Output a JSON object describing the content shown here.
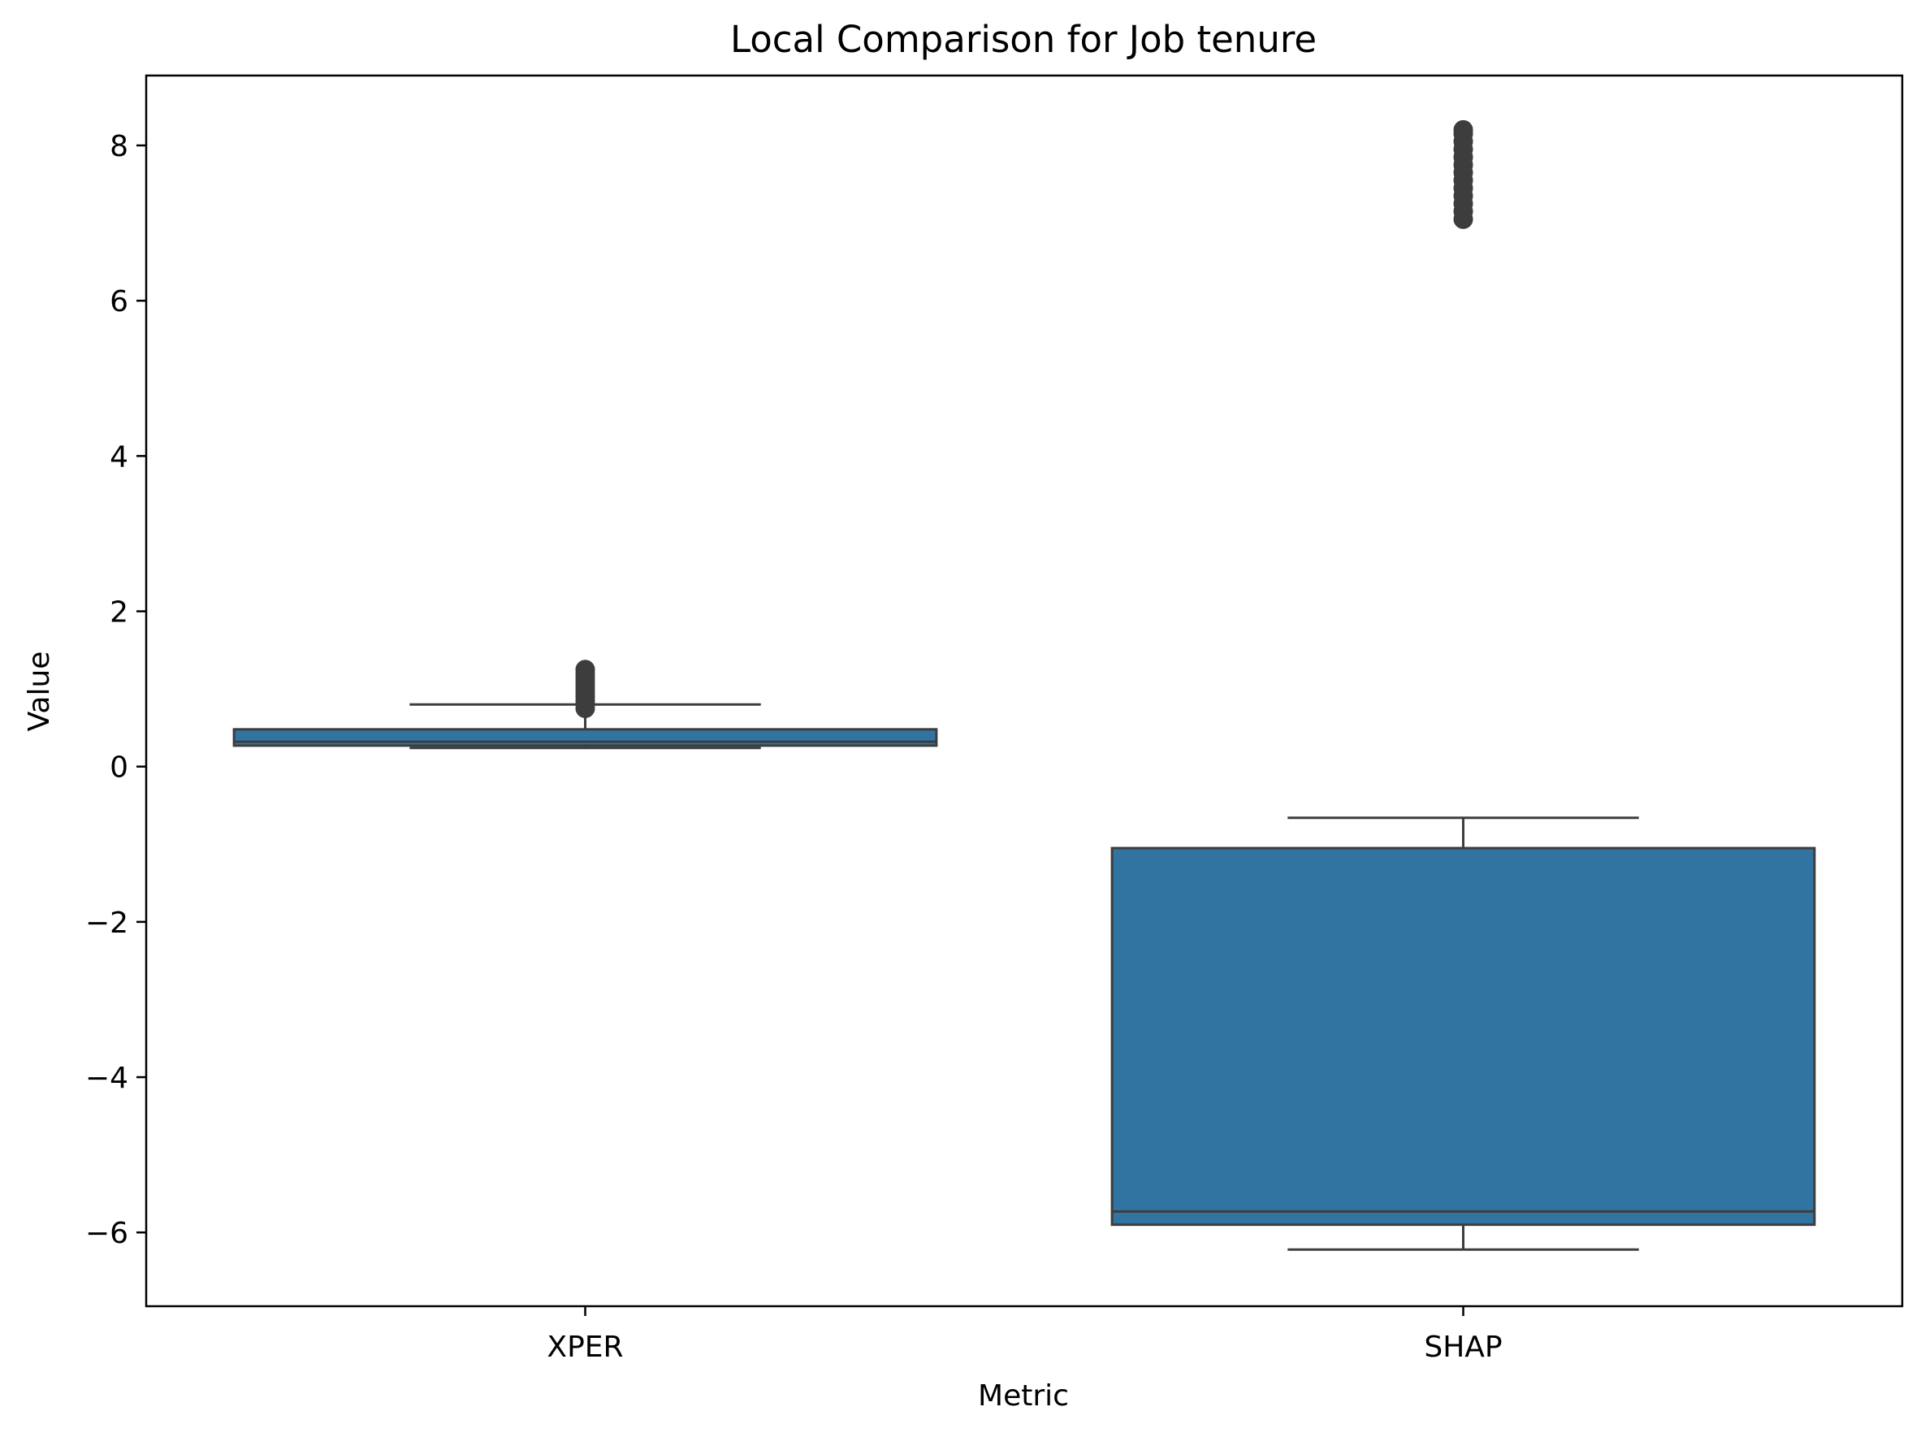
{
  "chart_data": {
    "type": "box",
    "title": "Local Comparison for Job tenure",
    "xlabel": "Metric",
    "ylabel": "Value",
    "ylim": [
      -6.95,
      8.9
    ],
    "yticks": [
      -6,
      -4,
      -2,
      0,
      2,
      4,
      6,
      8
    ],
    "ytick_labels": [
      "−6",
      "−4",
      "−2",
      "0",
      "2",
      "4",
      "6",
      "8"
    ],
    "categories": [
      "XPER",
      "SHAP"
    ],
    "grid": false,
    "legend": "none",
    "colors": {
      "box_fill": "#3274a1",
      "line": "#3d3d3d",
      "axis": "#000000"
    },
    "boxes": [
      {
        "category": "XPER",
        "whisker_low": 0.24,
        "q1": 0.27,
        "median": 0.32,
        "q3": 0.48,
        "whisker_high": 0.8,
        "outliers": [
          0.75,
          0.8,
          0.85,
          0.9,
          0.95,
          1.0,
          1.05,
          1.1,
          1.15,
          1.2,
          1.25
        ]
      },
      {
        "category": "SHAP",
        "whisker_low": -6.22,
        "q1": -5.9,
        "median": -5.73,
        "q3": -1.05,
        "whisker_high": -0.66,
        "outliers": [
          7.05,
          7.15,
          7.25,
          7.35,
          7.45,
          7.55,
          7.65,
          7.75,
          7.85,
          7.95,
          8.05,
          8.15,
          8.2
        ]
      }
    ]
  }
}
